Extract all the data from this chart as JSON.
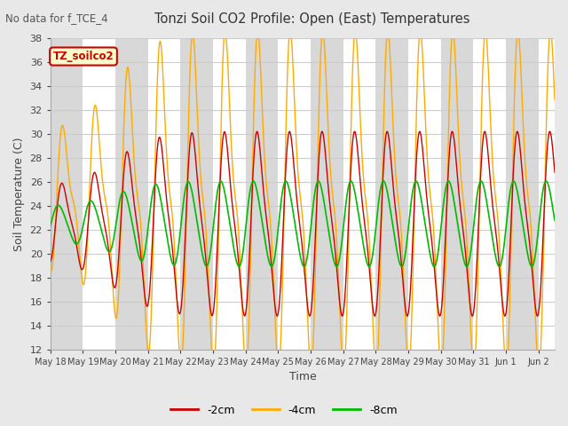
{
  "title": "Tonzi Soil CO2 Profile: Open (East) Temperatures",
  "subtitle": "No data for f_TCE_4",
  "xlabel": "Time",
  "ylabel": "Soil Temperature (C)",
  "ylim": [
    12,
    38
  ],
  "yticks": [
    12,
    14,
    16,
    18,
    20,
    22,
    24,
    26,
    28,
    30,
    32,
    34,
    36,
    38
  ],
  "legend_box_label": "TZ_soilco2",
  "legend_box_color": "#cc0000",
  "legend_box_bg": "#ffffcc",
  "series": [
    {
      "label": "-2cm",
      "color": "#cc0000"
    },
    {
      "label": "-4cm",
      "color": "#ffaa00"
    },
    {
      "label": "-8cm",
      "color": "#00bb00"
    }
  ],
  "bg_color": "#e8e8e8",
  "plot_bg": "#ffffff",
  "band_color": "#d8d8d8",
  "grid_color": "#cccccc",
  "n_days": 15.5,
  "date_labels": [
    "May 18",
    "May 19",
    "May 20",
    "May 21",
    "May 22",
    "May 23",
    "May 24",
    "May 25",
    "May 26",
    "May 27",
    "May 28",
    "May 29",
    "May 30",
    "May 31",
    "Jun 1",
    "Jun 2"
  ],
  "date_positions": [
    0,
    1,
    2,
    3,
    4,
    5,
    6,
    7,
    8,
    9,
    10,
    11,
    12,
    13,
    14,
    15
  ]
}
